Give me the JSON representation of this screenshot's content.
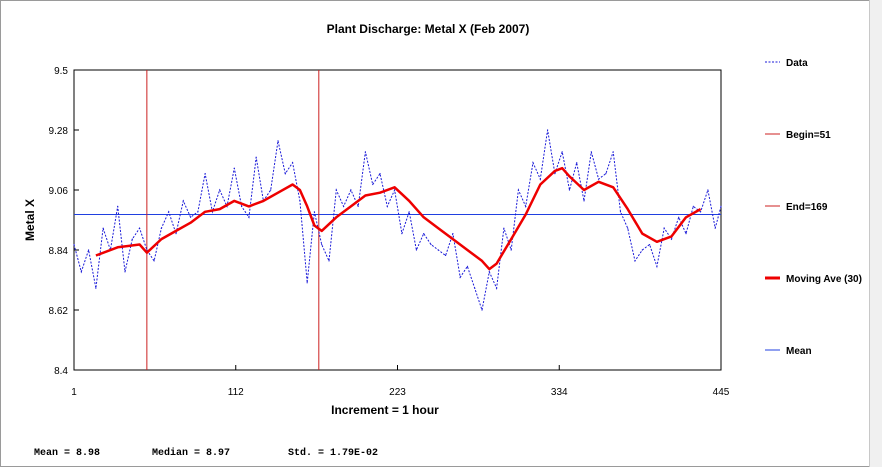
{
  "chart_data": {
    "type": "line",
    "title": "Plant Discharge: Metal X (Feb 2007)",
    "xlabel": "Increment = 1 hour",
    "ylabel": "Metal X",
    "xlim": [
      1,
      445
    ],
    "ylim": [
      8.4,
      9.5
    ],
    "x_ticks": [
      "1",
      "112",
      "223",
      "334",
      "445"
    ],
    "y_ticks": [
      "9.5",
      "9.28",
      "9.06",
      "8.84",
      "8.62",
      "8.4"
    ],
    "grid": false,
    "legend_position": "right",
    "begin_x": 51,
    "end_x": 169,
    "mean_value": 8.97,
    "series": [
      {
        "name": "Data",
        "style": "dashed",
        "color": "#1a1ad8",
        "x": [
          1,
          6,
          11,
          16,
          21,
          26,
          31,
          36,
          41,
          46,
          51,
          56,
          61,
          66,
          71,
          76,
          81,
          86,
          91,
          96,
          101,
          106,
          111,
          116,
          121,
          126,
          131,
          136,
          141,
          146,
          151,
          156,
          161,
          166,
          171,
          176,
          181,
          186,
          191,
          196,
          201,
          206,
          211,
          216,
          221,
          226,
          231,
          236,
          241,
          246,
          251,
          256,
          261,
          266,
          271,
          276,
          281,
          286,
          291,
          296,
          301,
          306,
          311,
          316,
          321,
          326,
          331,
          336,
          341,
          346,
          351,
          356,
          361,
          366,
          371,
          376,
          381,
          386,
          391,
          396,
          401,
          406,
          411,
          416,
          421,
          426,
          431,
          436,
          441,
          445
        ],
        "y": [
          8.86,
          8.76,
          8.84,
          8.7,
          8.92,
          8.84,
          9.0,
          8.76,
          8.88,
          8.92,
          8.84,
          8.8,
          8.92,
          8.98,
          8.9,
          9.02,
          8.96,
          8.98,
          9.12,
          8.98,
          9.06,
          9.0,
          9.14,
          9.0,
          8.96,
          9.18,
          9.02,
          9.06,
          9.24,
          9.12,
          9.16,
          9.02,
          8.72,
          8.98,
          8.86,
          8.8,
          9.06,
          9.0,
          9.06,
          9.0,
          9.2,
          9.08,
          9.12,
          9.0,
          9.06,
          8.9,
          8.98,
          8.84,
          8.9,
          8.86,
          8.84,
          8.82,
          8.9,
          8.74,
          8.78,
          8.7,
          8.62,
          8.76,
          8.7,
          8.92,
          8.84,
          9.06,
          9.0,
          9.16,
          9.1,
          9.28,
          9.12,
          9.2,
          9.06,
          9.16,
          9.02,
          9.2,
          9.1,
          9.12,
          9.2,
          8.98,
          8.92,
          8.8,
          8.84,
          8.86,
          8.78,
          8.92,
          8.88,
          8.96,
          8.9,
          9.0,
          8.98,
          9.06,
          8.92,
          9.0
        ]
      },
      {
        "name": "Begin=51",
        "color": "#cc2020"
      },
      {
        "name": "End=169",
        "color": "#cc2020"
      },
      {
        "name": "Moving Ave (30)",
        "color": "#ee0000",
        "x": [
          16,
          31,
          46,
          51,
          61,
          71,
          81,
          91,
          101,
          111,
          121,
          131,
          141,
          151,
          156,
          161,
          166,
          171,
          181,
          191,
          201,
          211,
          221,
          231,
          241,
          251,
          261,
          271,
          281,
          286,
          291,
          301,
          311,
          321,
          331,
          336,
          341,
          351,
          361,
          371,
          381,
          391,
          401,
          411,
          421,
          431
        ],
        "y": [
          8.82,
          8.85,
          8.86,
          8.83,
          8.88,
          8.91,
          8.94,
          8.98,
          8.99,
          9.02,
          9.0,
          9.02,
          9.05,
          9.08,
          9.06,
          9.0,
          8.93,
          8.91,
          8.96,
          9.0,
          9.04,
          9.05,
          9.07,
          9.02,
          8.96,
          8.92,
          8.88,
          8.84,
          8.8,
          8.77,
          8.79,
          8.88,
          8.97,
          9.08,
          9.13,
          9.14,
          9.11,
          9.06,
          9.09,
          9.07,
          8.99,
          8.9,
          8.87,
          8.89,
          8.96,
          8.99
        ]
      },
      {
        "name": "Mean",
        "color": "#2040e0"
      }
    ]
  },
  "stats": {
    "mean": "Mean = 8.98",
    "median": "Median = 8.97",
    "std": "Std. = 1.79E-02"
  }
}
